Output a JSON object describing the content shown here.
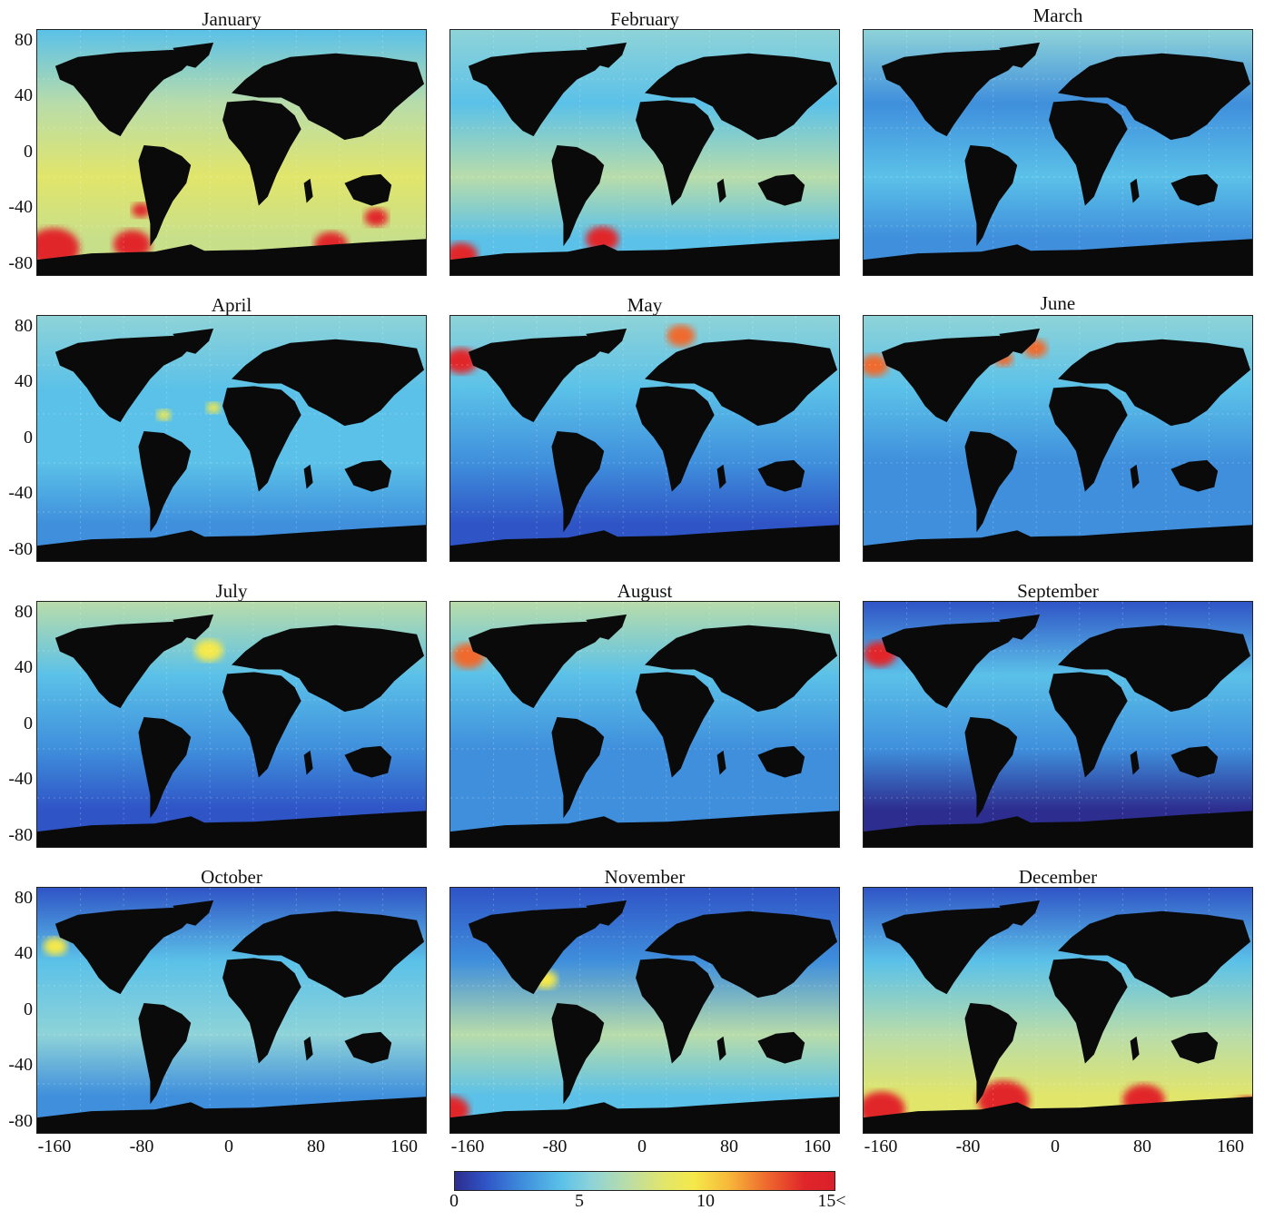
{
  "months": [
    "January",
    "February",
    "March",
    "April",
    "May",
    "June",
    "July",
    "August",
    "September",
    "October",
    "November",
    "December"
  ],
  "y_ticks": [
    "80",
    "40",
    "0",
    "-40",
    "-80"
  ],
  "x_ticks": [
    "-160",
    "-80",
    "0",
    "80",
    "160"
  ],
  "colorbar": {
    "ticks": [
      "0",
      "5",
      "10",
      "15<"
    ],
    "colors": [
      "#2d2d8f",
      "#2f54c6",
      "#3f8fdc",
      "#5bc1e8",
      "#8ed3d8",
      "#b8dcaa",
      "#e1e56a",
      "#f5e94a",
      "#f7b93a",
      "#ee6a2e",
      "#e1262a"
    ]
  },
  "colors": {
    "land": "#0a0a0a",
    "ocean_base": "#5bb8e6"
  }
}
